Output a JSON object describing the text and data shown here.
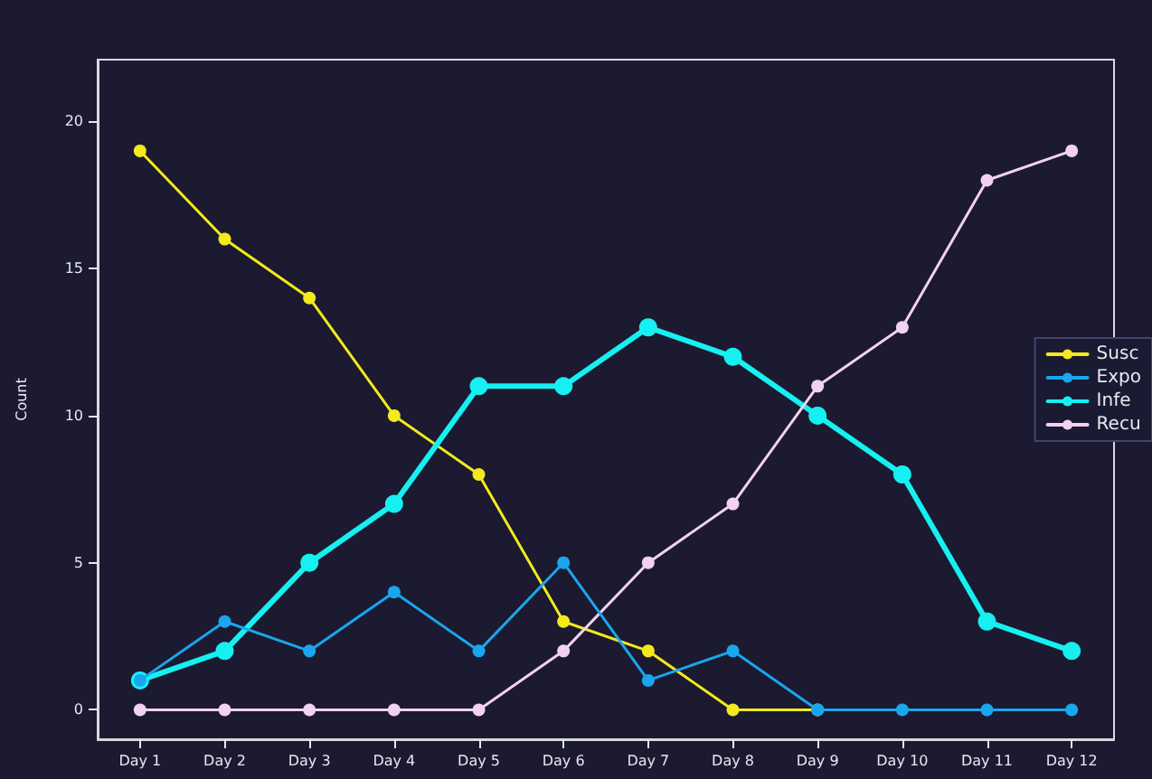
{
  "chart_data": {
    "type": "line",
    "ylabel": "Count",
    "categories": [
      "Day 1",
      "Day 2",
      "Day 3",
      "Day 4",
      "Day 5",
      "Day 6",
      "Day 7",
      "Day 8",
      "Day 9",
      "Day 10",
      "Day 11",
      "Day 12"
    ],
    "series": [
      {
        "name": "Susc",
        "color": "#f2ea1c",
        "values": [
          19,
          16,
          14,
          10,
          8,
          3,
          2,
          0,
          0,
          null,
          null,
          null
        ]
      },
      {
        "name": "Expo",
        "color": "#1aa6ee",
        "values": [
          1,
          3,
          2,
          4,
          2,
          5,
          1,
          2,
          0,
          0,
          0,
          0
        ]
      },
      {
        "name": "Infe",
        "color": "#16f0f0",
        "values": [
          1,
          2,
          5,
          7,
          11,
          11,
          13,
          12,
          10,
          8,
          3,
          2
        ]
      },
      {
        "name": "Recu",
        "color": "#f2d2f0",
        "values": [
          0,
          0,
          0,
          0,
          0,
          2,
          5,
          7,
          11,
          13,
          18,
          19
        ]
      }
    ],
    "ylim": [
      -1,
      22.1
    ],
    "yticks": [
      0,
      5,
      10,
      15,
      20
    ],
    "grid": false,
    "legend": "right",
    "marker": "circle",
    "line_style": "solid"
  }
}
